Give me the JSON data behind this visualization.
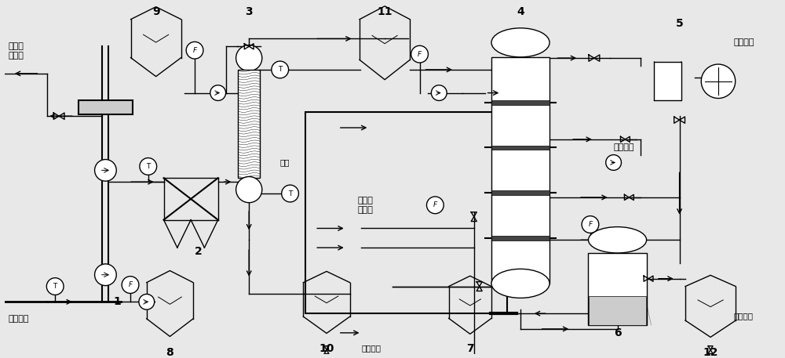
{
  "figsize": [
    10.0,
    4.57
  ],
  "dpi": 100,
  "bg_color": "#e8e8e8",
  "labels": {
    "water_steam": "水蒸汽\n供用户",
    "high_temp_flue": "高温烟气",
    "high_temp_clean_air": "高温清\n洁空气",
    "flue_discharge": "烟气排放",
    "gas_discharge": "气体排放",
    "circulate_use_left": "循环使用",
    "circulate_use_right": "循环使用",
    "hot_water": "热水"
  }
}
